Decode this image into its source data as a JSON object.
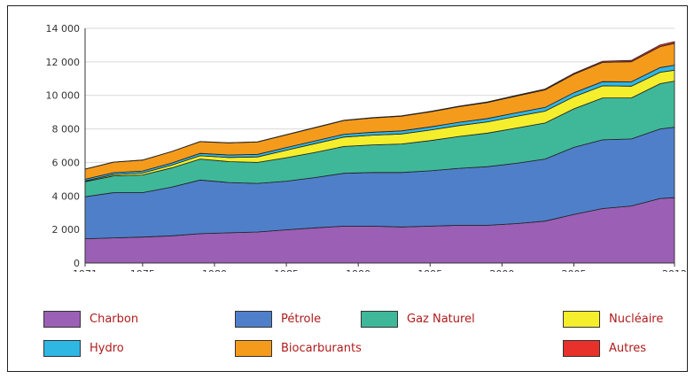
{
  "chart_data": {
    "type": "area",
    "stacked": true,
    "x": [
      1971,
      1973,
      1975,
      1977,
      1979,
      1981,
      1983,
      1985,
      1987,
      1989,
      1991,
      1993,
      1995,
      1997,
      1999,
      2001,
      2003,
      2005,
      2007,
      2009,
      2011,
      2012
    ],
    "xticks": [
      1971,
      1975,
      1980,
      1985,
      1990,
      1995,
      2000,
      2005,
      2012
    ],
    "yticks": [
      "0",
      "2 000",
      "4 000",
      "6 000",
      "8 000",
      "10 000",
      "12 000",
      "14 000"
    ],
    "ylim": [
      0,
      14000
    ],
    "xlim": [
      1971,
      2012
    ],
    "legend_position": "bottom",
    "series": [
      {
        "name": "Charbon",
        "color": "#9b5fb5",
        "values": [
          1450,
          1500,
          1550,
          1620,
          1750,
          1800,
          1850,
          1980,
          2100,
          2200,
          2200,
          2150,
          2200,
          2250,
          2250,
          2350,
          2500,
          2900,
          3250,
          3400,
          3850,
          3900
        ]
      },
      {
        "name": "Pétrole",
        "color": "#4f7fc9",
        "values": [
          2500,
          2700,
          2650,
          2900,
          3200,
          3000,
          2900,
          2900,
          3000,
          3150,
          3200,
          3250,
          3300,
          3400,
          3500,
          3600,
          3700,
          4000,
          4100,
          4000,
          4150,
          4200
        ]
      },
      {
        "name": "Gaz Naturel",
        "color": "#3fb89a",
        "values": [
          900,
          1000,
          1050,
          1150,
          1250,
          1250,
          1250,
          1400,
          1500,
          1600,
          1650,
          1700,
          1800,
          1900,
          2000,
          2100,
          2150,
          2300,
          2500,
          2450,
          2700,
          2750
        ]
      },
      {
        "name": "Nucléaire",
        "color": "#f4ee2c",
        "values": [
          50,
          80,
          120,
          160,
          200,
          250,
          330,
          450,
          520,
          560,
          580,
          600,
          630,
          650,
          670,
          700,
          710,
          720,
          720,
          700,
          680,
          650
        ]
      },
      {
        "name": "Hydro",
        "color": "#2fb7e4",
        "values": [
          100,
          110,
          120,
          130,
          140,
          145,
          150,
          160,
          165,
          170,
          175,
          180,
          190,
          195,
          200,
          210,
          220,
          240,
          250,
          260,
          280,
          300
        ]
      },
      {
        "name": "Biocarburants",
        "color": "#f59b1c",
        "values": [
          600,
          630,
          650,
          680,
          700,
          720,
          740,
          760,
          790,
          820,
          850,
          880,
          900,
          930,
          960,
          1000,
          1050,
          1100,
          1150,
          1200,
          1250,
          1300
        ]
      },
      {
        "name": "Autres",
        "color": "#e8312b",
        "values": [
          5,
          5,
          5,
          6,
          6,
          7,
          8,
          10,
          12,
          15,
          18,
          20,
          25,
          30,
          35,
          40,
          50,
          60,
          70,
          80,
          100,
          110
        ]
      }
    ]
  },
  "legend": [
    {
      "label": "Charbon",
      "color": "#9b5fb5"
    },
    {
      "label": "Pétrole",
      "color": "#4f7fc9"
    },
    {
      "label": "Gaz Naturel",
      "color": "#3fb89a"
    },
    {
      "label": "Nucléaire",
      "color": "#f4ee2c"
    },
    {
      "label": "Hydro",
      "color": "#2fb7e4"
    },
    {
      "label": "Biocarburants",
      "color": "#f59b1c"
    },
    {
      "label": "Autres",
      "color": "#e8312b"
    }
  ]
}
